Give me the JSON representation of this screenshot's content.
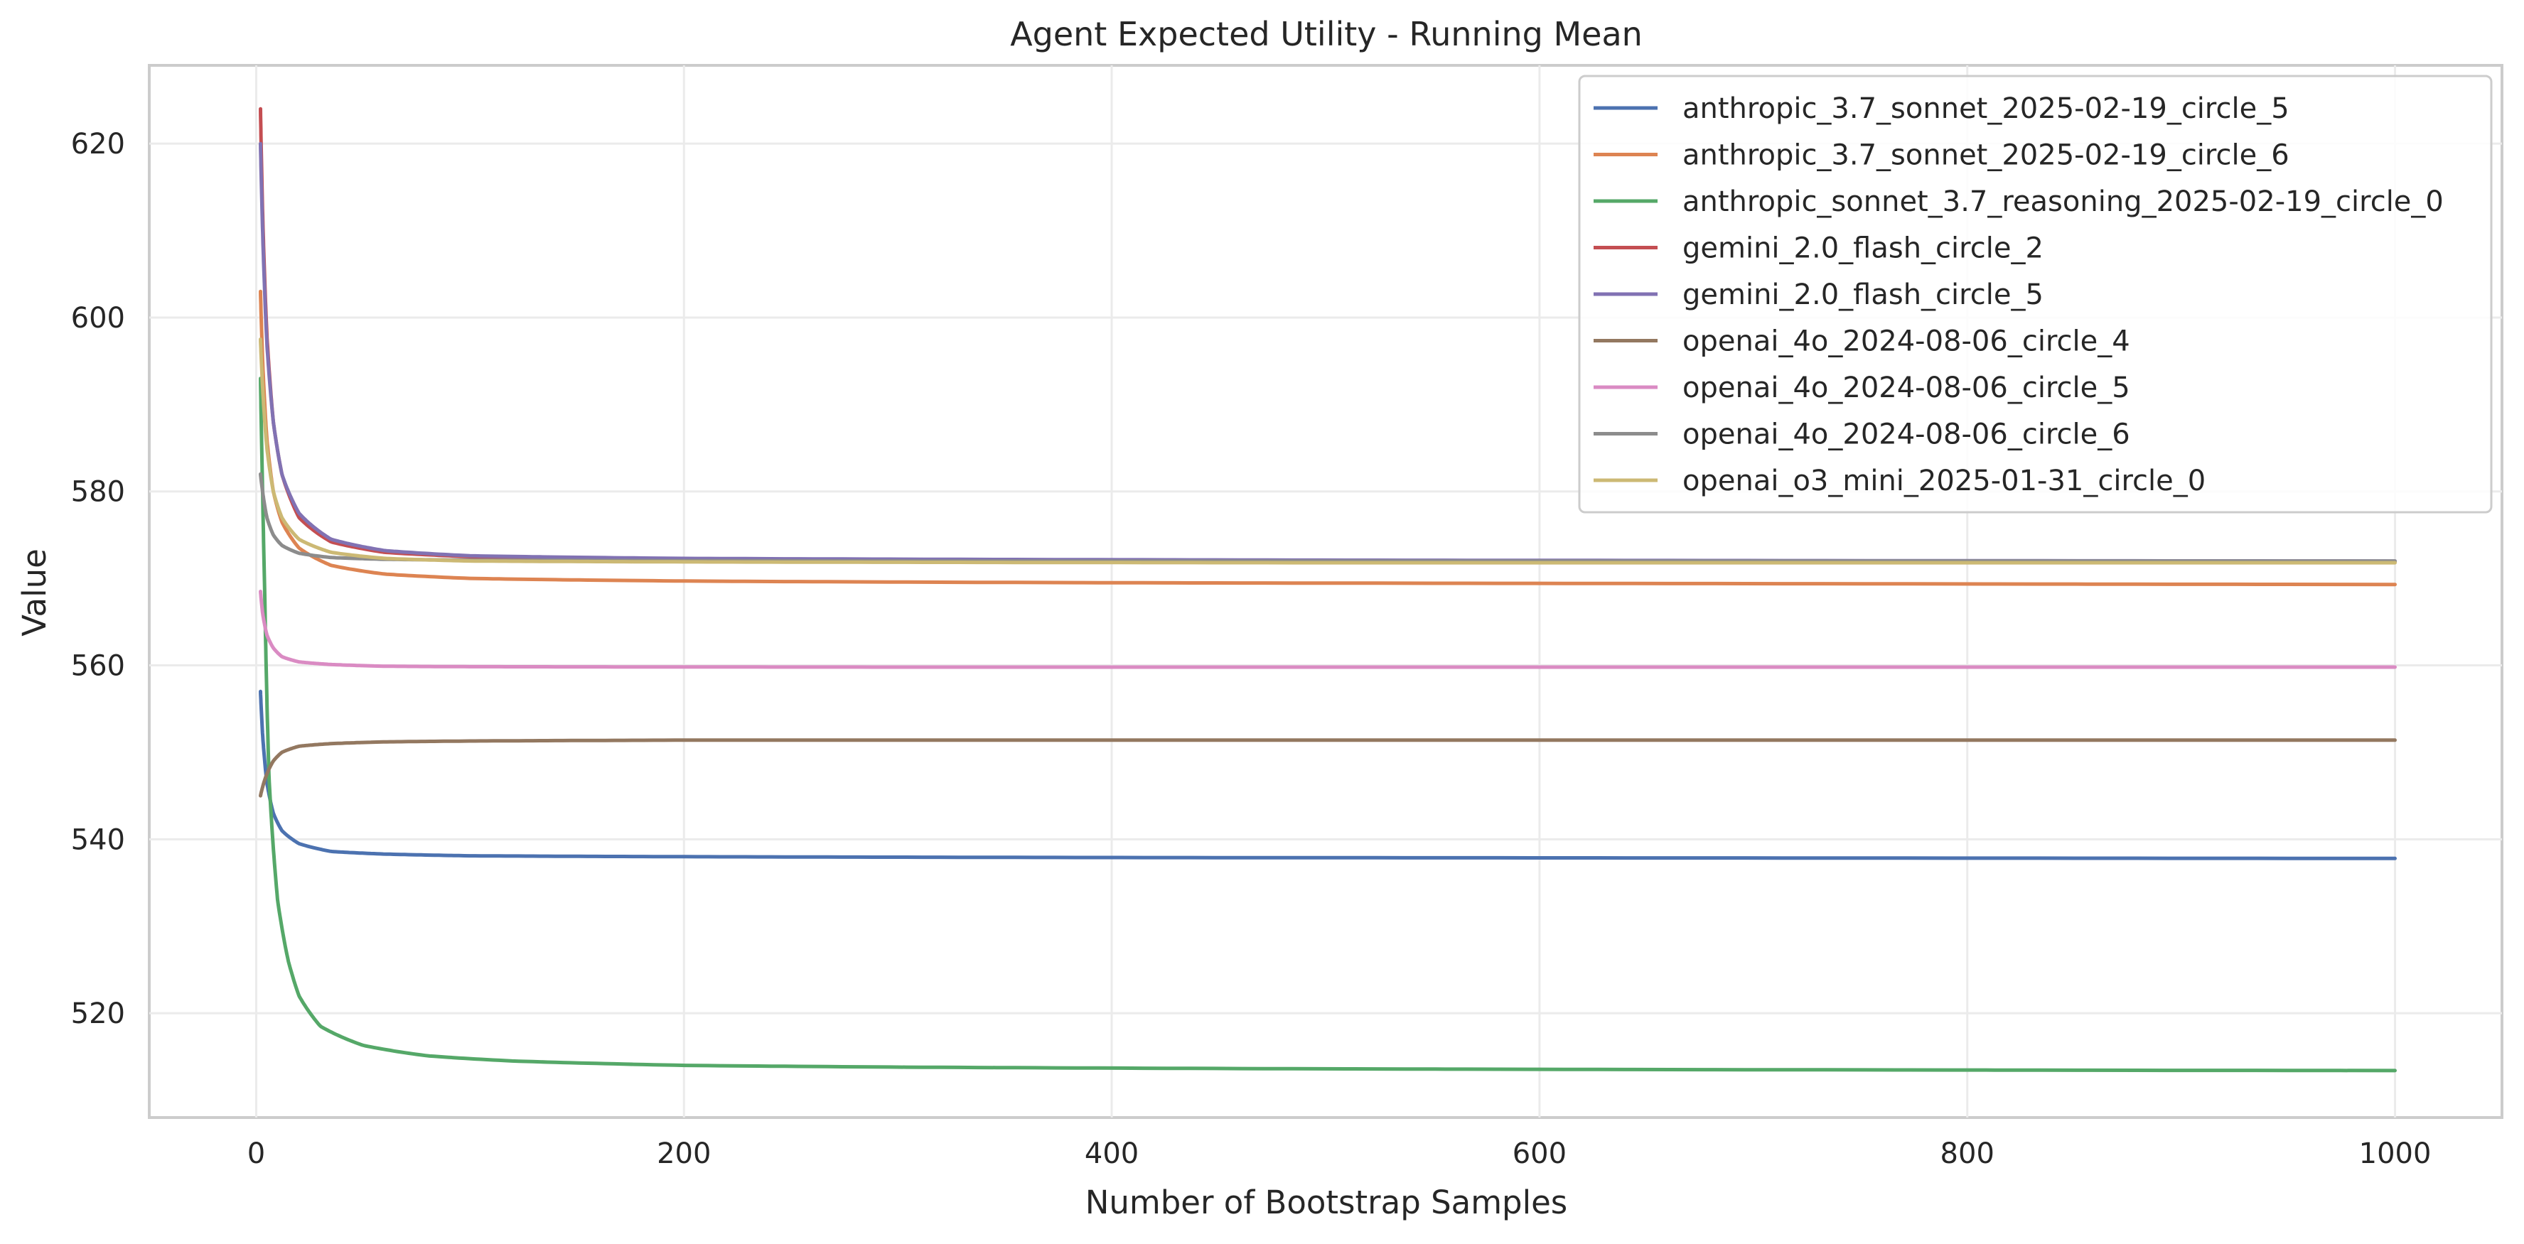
{
  "chart_data": {
    "type": "line",
    "title": "Agent Expected Utility - Running Mean",
    "xlabel": "Number of Bootstrap Samples",
    "ylabel": "Value",
    "xlim": [
      -50,
      1050
    ],
    "ylim": [
      508,
      629
    ],
    "xticks": [
      "0",
      "200",
      "400",
      "600",
      "800",
      "1000"
    ],
    "yticks": [
      "520",
      "540",
      "560",
      "580",
      "600",
      "620"
    ],
    "grid": true,
    "legend_position": "top-right",
    "series": [
      {
        "name": "anthropic_3.7_sonnet_2025-02-19_circle_5",
        "color": "#4c72b0",
        "points": [
          [
            2,
            557
          ],
          [
            3,
            552
          ],
          [
            5,
            546.5
          ],
          [
            8,
            543
          ],
          [
            12,
            541
          ],
          [
            20,
            539.5
          ],
          [
            35,
            538.6
          ],
          [
            60,
            538.3
          ],
          [
            100,
            538.1
          ],
          [
            200,
            538.0
          ],
          [
            400,
            537.9
          ],
          [
            700,
            537.85
          ],
          [
            1000,
            537.8
          ]
        ]
      },
      {
        "name": "anthropic_3.7_sonnet_2025-02-19_circle_6",
        "color": "#dd8452",
        "points": [
          [
            2,
            603
          ],
          [
            3,
            595
          ],
          [
            5,
            586
          ],
          [
            8,
            580
          ],
          [
            12,
            576.5
          ],
          [
            20,
            573.5
          ],
          [
            35,
            571.5
          ],
          [
            60,
            570.5
          ],
          [
            100,
            570.0
          ],
          [
            200,
            569.7
          ],
          [
            400,
            569.5
          ],
          [
            700,
            569.4
          ],
          [
            1000,
            569.3
          ]
        ]
      },
      {
        "name": "anthropic_sonnet_3.7_reasoning_2025-02-19_circle_0",
        "color": "#55a868",
        "points": [
          [
            2,
            593
          ],
          [
            3,
            580
          ],
          [
            4,
            568
          ],
          [
            5,
            556
          ],
          [
            6,
            547
          ],
          [
            8,
            539
          ],
          [
            10,
            533
          ],
          [
            15,
            526
          ],
          [
            20,
            522
          ],
          [
            30,
            518.5
          ],
          [
            50,
            516.3
          ],
          [
            80,
            515.1
          ],
          [
            120,
            514.5
          ],
          [
            200,
            514.0
          ],
          [
            300,
            513.8
          ],
          [
            500,
            513.6
          ],
          [
            700,
            513.5
          ],
          [
            1000,
            513.4
          ]
        ]
      },
      {
        "name": "gemini_2.0_flash_circle_2",
        "color": "#c44e52",
        "points": [
          [
            2,
            624
          ],
          [
            3,
            612
          ],
          [
            5,
            598
          ],
          [
            8,
            588
          ],
          [
            12,
            582
          ],
          [
            20,
            577
          ],
          [
            35,
            574.2
          ],
          [
            60,
            573
          ],
          [
            100,
            572.5
          ],
          [
            200,
            572.2
          ],
          [
            500,
            572.0
          ],
          [
            1000,
            571.9
          ]
        ]
      },
      {
        "name": "gemini_2.0_flash_circle_5",
        "color": "#8172b3",
        "points": [
          [
            2,
            620
          ],
          [
            3,
            610
          ],
          [
            5,
            597
          ],
          [
            8,
            588
          ],
          [
            12,
            582
          ],
          [
            20,
            577.5
          ],
          [
            35,
            574.5
          ],
          [
            60,
            573.2
          ],
          [
            100,
            572.6
          ],
          [
            200,
            572.3
          ],
          [
            500,
            572.1
          ],
          [
            1000,
            572.0
          ]
        ]
      },
      {
        "name": "openai_4o_2024-08-06_circle_4",
        "color": "#937860",
        "points": [
          [
            2,
            545
          ],
          [
            3,
            546
          ],
          [
            5,
            547.5
          ],
          [
            8,
            549
          ],
          [
            12,
            550
          ],
          [
            20,
            550.7
          ],
          [
            35,
            551.0
          ],
          [
            60,
            551.2
          ],
          [
            100,
            551.3
          ],
          [
            200,
            551.4
          ],
          [
            1000,
            551.4
          ]
        ]
      },
      {
        "name": "openai_4o_2024-08-06_circle_5",
        "color": "#da8bc3",
        "points": [
          [
            2,
            568.5
          ],
          [
            3,
            566
          ],
          [
            5,
            563.5
          ],
          [
            8,
            562
          ],
          [
            12,
            561
          ],
          [
            20,
            560.4
          ],
          [
            35,
            560.1
          ],
          [
            60,
            559.9
          ],
          [
            100,
            559.85
          ],
          [
            300,
            559.8
          ],
          [
            1000,
            559.8
          ]
        ]
      },
      {
        "name": "openai_4o_2024-08-06_circle_6",
        "color": "#8c8c8c",
        "points": [
          [
            2,
            582
          ],
          [
            3,
            580
          ],
          [
            5,
            577
          ],
          [
            8,
            575
          ],
          [
            12,
            573.8
          ],
          [
            20,
            572.9
          ],
          [
            35,
            572.4
          ],
          [
            60,
            572.2
          ],
          [
            100,
            572.1
          ],
          [
            300,
            572.0
          ],
          [
            1000,
            572.0
          ]
        ]
      },
      {
        "name": "openai_o3_mini_2025-01-31_circle_0",
        "color": "#ccb974",
        "points": [
          [
            2,
            597.5
          ],
          [
            3,
            592
          ],
          [
            5,
            585
          ],
          [
            8,
            580
          ],
          [
            12,
            577
          ],
          [
            20,
            574.5
          ],
          [
            35,
            573
          ],
          [
            60,
            572.3
          ],
          [
            100,
            572.0
          ],
          [
            200,
            571.9
          ],
          [
            500,
            571.8
          ],
          [
            1000,
            571.8
          ]
        ]
      }
    ]
  }
}
